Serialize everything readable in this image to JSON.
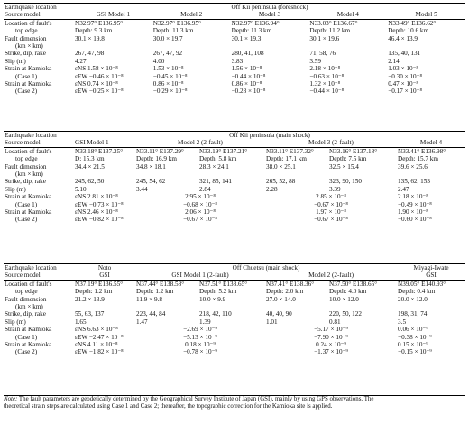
{
  "t1": {
    "title": "Off Kii peninsula (foreshock)",
    "models": [
      "GSI Model 1",
      "Model 2",
      "Model 3",
      "Model 4",
      "Model 5"
    ],
    "rows": [
      {
        "l1": "Location of fault's",
        "l2": "top edge",
        "v": [
          [
            "N32.97° E136.95°",
            "Depth: 9.3 km"
          ],
          [
            "N32.97° E136.95°",
            "Depth: 11.3 km"
          ],
          [
            "N32.97° E136.94°",
            "Depth: 11.3 km"
          ],
          [
            "N33.03° E136.67°",
            "Depth: 11.2 km"
          ],
          [
            "N33.49° E136.62°",
            "Depth: 10.6 km"
          ]
        ]
      },
      {
        "l1": "Fault dimension",
        "l2": "(km × km)",
        "v": [
          [
            "30.1 × 19.8",
            ""
          ],
          [
            "30.0 × 19.7",
            ""
          ],
          [
            "30.1 × 19.3",
            ""
          ],
          [
            "30.1 × 19.6",
            ""
          ],
          [
            "46.4 × 13.9",
            ""
          ]
        ]
      },
      {
        "l1": "Strike, dip, rake",
        "l2": "",
        "v": [
          [
            "267, 47, 98",
            ""
          ],
          [
            "267, 47, 92",
            ""
          ],
          [
            "280, 41, 108",
            ""
          ],
          [
            "71, 58, 76",
            ""
          ],
          [
            "135, 40, 131",
            ""
          ]
        ]
      },
      {
        "l1": "Slip (m)",
        "l2": "",
        "v": [
          [
            "4.27",
            ""
          ],
          [
            "4.00",
            ""
          ],
          [
            "3.83",
            ""
          ],
          [
            "3.59",
            ""
          ],
          [
            "2.14",
            ""
          ]
        ]
      },
      {
        "l1": "Strain at Kamioka",
        "l2": "(Case 1)",
        "v": [
          [
            "εNS 1.58 × 10⁻⁸",
            "εEW −0.46 × 10⁻⁸"
          ],
          [
            "1.53 × 10⁻⁸",
            "−0.45 × 10⁻⁸"
          ],
          [
            "1.56 × 10⁻⁸",
            "−0.44 × 10⁻⁸"
          ],
          [
            "2.18 × 10⁻⁸",
            "−0.63 × 10⁻⁸"
          ],
          [
            "1.03 × 10⁻⁸",
            "−0.30 × 10⁻⁸"
          ]
        ]
      },
      {
        "l1": "Strain at Kamioka",
        "l2": "(Case 2)",
        "v": [
          [
            "εNS 0.74 × 10⁻⁸",
            "εEW −0.25 × 10⁻⁸"
          ],
          [
            "0.86 × 10⁻⁸",
            "−0.29 × 10⁻⁸"
          ],
          [
            "0.86 × 10⁻⁸",
            "−0.28 × 10⁻⁸"
          ],
          [
            "1.32 × 10⁻⁸",
            "−0.44 × 10⁻⁸"
          ],
          [
            "0.47 × 10⁻⁸",
            "−0.17 × 10⁻⁸"
          ]
        ]
      }
    ]
  },
  "t2": {
    "title": "Off Kii peninsula (main shock)",
    "models": [
      "GSI Model 1",
      "Model 2 (2-fault)",
      "Model 3 (2-fault)",
      "Model 4"
    ],
    "loc": [
      [
        "N33.18° E137.25°",
        "D: 15.3 km"
      ],
      [
        "N33.11° E137.29°",
        "Depth: 16.9 km"
      ],
      [
        "N33.19° E137.21°",
        "Depth: 5.8 km"
      ],
      [
        "N33.11° E137.32°",
        "Depth: 17.1 km"
      ],
      [
        "N33.16° E137.18°",
        "Depth: 7.5 km"
      ],
      [
        "N33.41° E136.98°",
        "Depth: 15.7 km"
      ]
    ],
    "dim": [
      "34.4 × 21.5",
      "34.8 × 18.1",
      "28.3 × 24.1",
      "38.0 × 25.1",
      "32.5 × 15.4",
      "39.6 × 25.6"
    ],
    "sdr": [
      "245, 62, 50",
      "245, 54, 62",
      "321, 85, 141",
      "265, 52, 88",
      "323, 90, 150",
      "135, 62, 153"
    ],
    "slip": [
      "5.10",
      "3.44",
      "2.84",
      "2.28",
      "3.39",
      "2.47"
    ],
    "case1": {
      "gsi": [
        "εNS 2.81 × 10⁻⁸",
        "εEW −0.73 × 10⁻⁸"
      ],
      "m2": [
        "2.95 × 10⁻⁸",
        "−0.68 × 10⁻⁸"
      ],
      "m3": [
        "2.85 × 10⁻⁸",
        "−0.67 × 10⁻⁸"
      ],
      "m4": [
        "2.18 × 10⁻⁸",
        "−0.49 × 10⁻⁸"
      ]
    },
    "case2": {
      "gsi": [
        "εNS 2.46 × 10⁻⁸",
        "εEW −0.82 × 10⁻⁸"
      ],
      "m2": [
        "2.06 × 10⁻⁸",
        "−0.67 × 10⁻⁸"
      ],
      "m3": [
        "1.97 × 10⁻⁸",
        "−0.67 × 10⁻⁸"
      ],
      "m4": [
        "1.90 × 10⁻⁸",
        "−0.60 × 10⁻⁸"
      ]
    }
  },
  "t3": {
    "events": [
      "Noto",
      "Off Chuetsu (main shock)",
      "Miyagi-Iwate"
    ],
    "models": [
      "GSI",
      "GSI Model 1 (2-fault)",
      "Model 2 (2-fault)",
      "GSI"
    ],
    "loc": [
      [
        "N37.19° E136.55°",
        "Depth: 1.2 km"
      ],
      [
        "N37.44° E138.58°",
        "Depth: 1.2 km"
      ],
      [
        "N37.51° E138.65°",
        "Depth: 5.2 km"
      ],
      [
        "N37.41° E138.36°",
        "Depth: 2.0 km"
      ],
      [
        "N37.50° E138.65°",
        "Depth: 4.0 km"
      ],
      [
        "N39.05° E140.93°",
        "Depth: 0.4 km"
      ]
    ],
    "dim": [
      "21.2 × 13.9",
      "11.9 × 9.8",
      "10.0 × 9.9",
      "27.0 × 14.0",
      "10.0 × 12.0",
      "20.0 × 12.0"
    ],
    "sdr": [
      "55, 63, 137",
      "223, 44, 84",
      "218, 42, 110",
      "40, 40, 90",
      "220, 50, 122",
      "198, 31, 74"
    ],
    "slip": [
      "1.65",
      "1.47",
      "1.39",
      "1.01",
      "0.81",
      "3.5"
    ],
    "case1": {
      "noto": [
        "εNS 6.63 × 10⁻⁸",
        "εEW −2.47 × 10⁻⁸"
      ],
      "m1": [
        "−2.69 × 10⁻⁹",
        "−5.13 × 10⁻⁹"
      ],
      "m2": [
        "−5.17 × 10⁻⁹",
        "−7.90 × 10⁻⁹"
      ],
      "miy": [
        "0.06 × 10⁻⁹",
        "−0.38 × 10⁻⁹"
      ]
    },
    "case2": {
      "noto": [
        "εNS 4.11 × 10⁻⁸",
        "εEW −1.82 × 10⁻⁸"
      ],
      "m1": [
        "0.18 × 10⁻⁹",
        "−0.78 × 10⁻⁹"
      ],
      "m2": [
        "0.24 × 10⁻⁹",
        "−1.37 × 10⁻⁹"
      ],
      "miy": [
        "0.15 × 10⁻⁹",
        "−0.15 × 10⁻⁹"
      ]
    }
  },
  "labels": {
    "eq": "Earthquake location",
    "src": "Source model",
    "loc1": "Location of fault's",
    "loc2": "top edge",
    "dim1": "Fault dimension",
    "dim2": "(km × km)",
    "sdr": "Strike, dip, rake",
    "slip": "Slip (m)",
    "str": "Strain at Kamioka",
    "c1": "(Case 1)",
    "c2": "(Case 2)"
  },
  "note": {
    "label": "Note:",
    "l1": "The fault parameters are geodetically determined by the Geographical Survey Institute of Japan (GSI), mainly by using GPS observations. The",
    "l2": "theoretical strain steps are calculated using Case 1 and Case 2; thereafter, the topographic correction for the Kamioka site is applied."
  }
}
